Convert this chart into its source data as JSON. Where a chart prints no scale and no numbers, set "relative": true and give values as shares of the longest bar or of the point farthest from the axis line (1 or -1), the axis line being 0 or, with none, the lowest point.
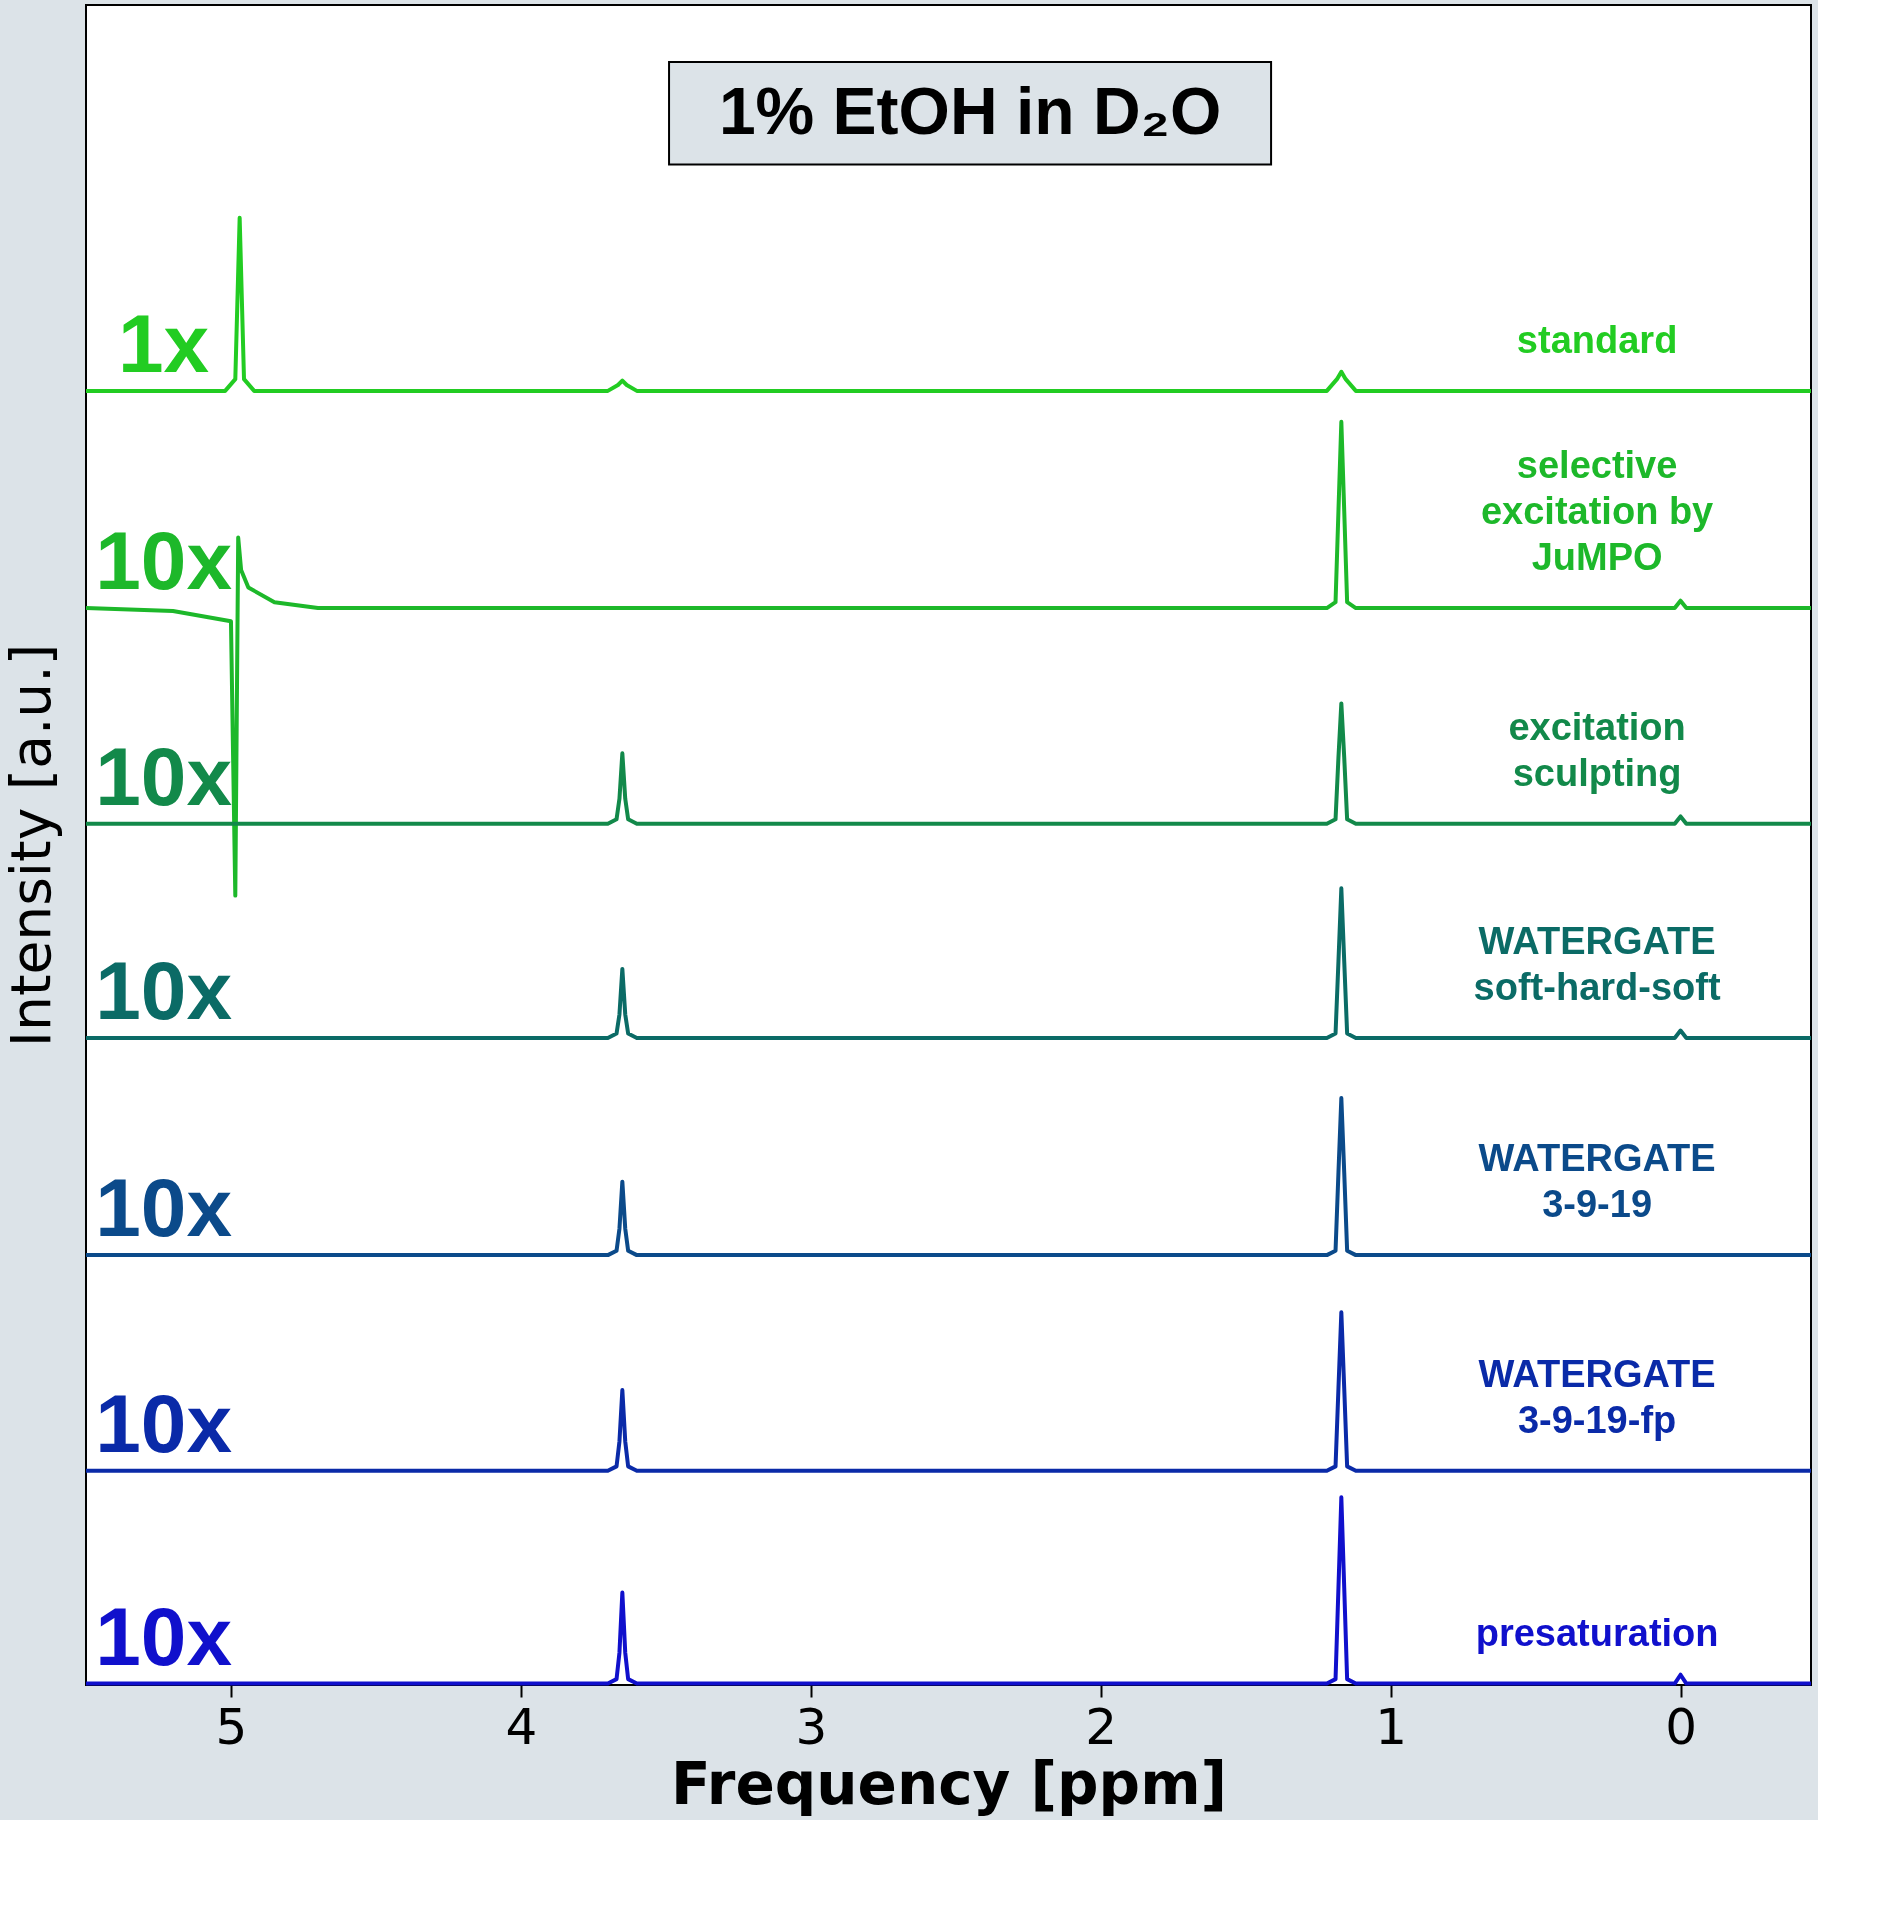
{
  "chart_data": {
    "type": "line",
    "title": "1% EtOH in D₂O",
    "xlabel": "Frequency [ppm]",
    "ylabel": "Intensity [a.u.]",
    "xlim": [
      5.5,
      -0.45
    ],
    "xticks": [
      5,
      4,
      3,
      2,
      1,
      0
    ],
    "relative": true,
    "grid": false,
    "tick_labels": "x",
    "line_style": "solid",
    "series": [
      {
        "name": "standard",
        "color": "#22cc22",
        "x": [
          5.5,
          5.02,
          4.985,
          4.97,
          4.955,
          4.92,
          3.7,
          3.665,
          3.65,
          3.635,
          3.6,
          1.22,
          1.185,
          1.17,
          1.155,
          1.12,
          -0.45
        ],
        "values": [
          0.882,
          0.882,
          0.89,
          1.0,
          0.89,
          0.882,
          0.882,
          0.886,
          0.889,
          0.886,
          0.882,
          0.882,
          0.89,
          0.895,
          0.89,
          0.882,
          0.882
        ]
      },
      {
        "name": "selective excitation by JuMPO",
        "color": "#1db82a",
        "x": [
          5.5,
          5.2,
          5.0,
          4.985,
          4.975,
          4.965,
          4.94,
          4.85,
          4.7,
          1.22,
          1.19,
          1.18,
          1.17,
          1.16,
          1.15,
          1.12,
          0.02,
          0.0,
          -0.02,
          -0.45
        ],
        "values": [
          0.734,
          0.732,
          0.725,
          0.538,
          0.782,
          0.76,
          0.748,
          0.738,
          0.734,
          0.734,
          0.738,
          0.8,
          0.861,
          0.8,
          0.738,
          0.734,
          0.734,
          0.739,
          0.734,
          0.734
        ]
      },
      {
        "name": "excitation sculpting",
        "color": "#12894a",
        "x": [
          5.5,
          3.7,
          3.67,
          3.66,
          3.65,
          3.64,
          3.63,
          3.6,
          1.22,
          1.19,
          1.18,
          1.17,
          1.16,
          1.15,
          1.12,
          0.02,
          0.0,
          -0.02,
          -0.45
        ],
        "values": [
          0.587,
          0.587,
          0.59,
          0.604,
          0.635,
          0.604,
          0.59,
          0.587,
          0.587,
          0.59,
          0.632,
          0.669,
          0.632,
          0.59,
          0.587,
          0.587,
          0.592,
          0.587,
          0.587
        ]
      },
      {
        "name": "WATERGATE soft-hard-soft",
        "color": "#0b6b66",
        "x": [
          5.5,
          3.7,
          3.67,
          3.66,
          3.65,
          3.64,
          3.63,
          3.6,
          1.22,
          1.19,
          1.18,
          1.17,
          1.16,
          1.15,
          1.12,
          0.02,
          0.0,
          -0.02,
          -0.45
        ],
        "values": [
          0.441,
          0.441,
          0.444,
          0.457,
          0.488,
          0.457,
          0.444,
          0.441,
          0.441,
          0.444,
          0.493,
          0.543,
          0.493,
          0.444,
          0.441,
          0.441,
          0.446,
          0.441,
          0.441
        ]
      },
      {
        "name": "WATERGATE 3-9-19",
        "color": "#0b4a8a",
        "x": [
          5.5,
          3.7,
          3.67,
          3.66,
          3.65,
          3.64,
          3.63,
          3.6,
          1.22,
          1.19,
          1.18,
          1.17,
          1.16,
          1.15,
          1.12,
          -0.45
        ],
        "values": [
          0.293,
          0.293,
          0.296,
          0.311,
          0.343,
          0.311,
          0.296,
          0.293,
          0.293,
          0.296,
          0.349,
          0.4,
          0.349,
          0.296,
          0.293,
          0.293
        ]
      },
      {
        "name": "WATERGATE 3-9-19-fp",
        "color": "#0a2aa8",
        "x": [
          5.5,
          3.7,
          3.67,
          3.66,
          3.65,
          3.64,
          3.63,
          3.6,
          1.22,
          1.19,
          1.18,
          1.17,
          1.16,
          1.15,
          1.12,
          -0.45
        ],
        "values": [
          0.146,
          0.146,
          0.149,
          0.166,
          0.201,
          0.166,
          0.149,
          0.146,
          0.146,
          0.149,
          0.202,
          0.254,
          0.202,
          0.149,
          0.146,
          0.146
        ]
      },
      {
        "name": "presaturation",
        "color": "#1010cc",
        "x": [
          5.5,
          3.7,
          3.67,
          3.66,
          3.65,
          3.64,
          3.63,
          3.6,
          1.22,
          1.19,
          1.18,
          1.17,
          1.16,
          1.15,
          1.12,
          0.02,
          0.0,
          -0.02,
          -0.45
        ],
        "values": [
          0.001,
          0.001,
          0.004,
          0.022,
          0.063,
          0.022,
          0.004,
          0.001,
          0.001,
          0.004,
          0.066,
          0.128,
          0.066,
          0.004,
          0.001,
          0.001,
          0.007,
          0.001,
          0.001
        ]
      }
    ],
    "annotations": [
      "1x",
      "10x",
      "10x",
      "10x",
      "10x",
      "10x",
      "10x"
    ]
  }
}
